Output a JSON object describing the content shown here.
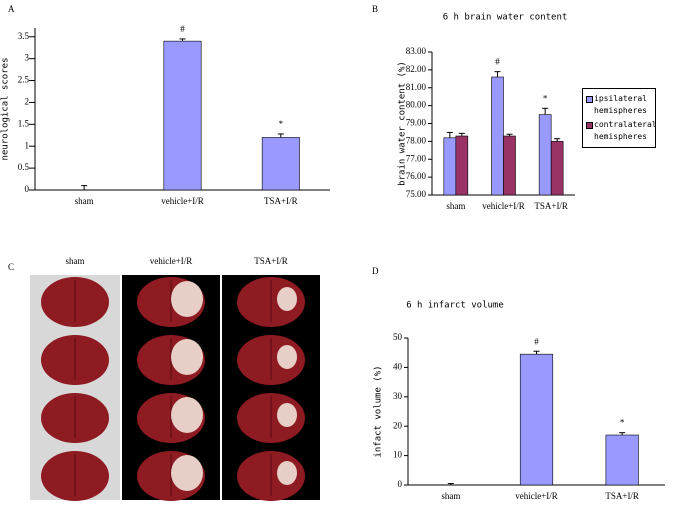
{
  "chart_data": [
    {
      "type": "bar",
      "panel": "A",
      "ylabel": "neurological scores",
      "categories": [
        "sham",
        "vehicle+I/R",
        "TSA+I/R"
      ],
      "values": [
        0,
        3.4,
        1.2
      ],
      "errors": [
        0.1,
        0.05,
        0.08
      ],
      "annotations": [
        null,
        "#",
        "*"
      ],
      "color": "#9999ff",
      "ylim": [
        0,
        3.7
      ],
      "yticks": [
        0,
        0.5,
        1,
        1.5,
        2,
        2.5,
        3,
        3.5
      ]
    },
    {
      "type": "bar",
      "panel": "B",
      "title": "6 h brain water content",
      "ylabel": "brain water content (%)",
      "categories": [
        "sham",
        "vehicle+I/R",
        "TSA+I/R"
      ],
      "series": [
        {
          "name": "ipsilateral hemispheres",
          "color": "#9999ff",
          "values": [
            78.2,
            81.6,
            79.5
          ],
          "errors": [
            0.3,
            0.3,
            0.35
          ],
          "annotations": [
            null,
            "#",
            "*"
          ]
        },
        {
          "name": "contralateral hemispheres",
          "color": "#993366",
          "values": [
            78.3,
            78.3,
            78.0
          ],
          "errors": [
            0.15,
            0.1,
            0.15
          ]
        }
      ],
      "ylim": [
        75,
        83
      ],
      "yticks": [
        {
          "value": 75,
          "label": "75.00"
        },
        {
          "value": 76,
          "label": "76.00"
        },
        {
          "value": 77,
          "label": "77.00"
        },
        {
          "value": 78,
          "label": "78.00"
        },
        {
          "value": 79,
          "label": "79.00"
        },
        {
          "value": 80,
          "label": "80.00"
        },
        {
          "value": 81,
          "label": "81.00"
        },
        {
          "value": 82,
          "label": "82.00"
        },
        {
          "value": 83,
          "label": "83.00"
        }
      ],
      "legend": "right"
    },
    {
      "type": "bar",
      "panel": "D",
      "title": "6 h infarct volume",
      "ylabel": "infact volume (%)",
      "categories": [
        "sham",
        "vehicle+I/R",
        "TSA+I/R"
      ],
      "values": [
        0,
        44.5,
        17
      ],
      "errors": [
        0.5,
        1,
        0.8
      ],
      "annotations": [
        null,
        "#",
        "*"
      ],
      "color": "#9999ff",
      "ylim": [
        0,
        50
      ],
      "yticks": [
        0,
        10,
        20,
        30,
        40,
        50
      ]
    }
  ],
  "photo_panel": {
    "panel": "C",
    "columns": [
      "sham",
      "vehicle+I/R",
      "TSA+I/R"
    ]
  }
}
